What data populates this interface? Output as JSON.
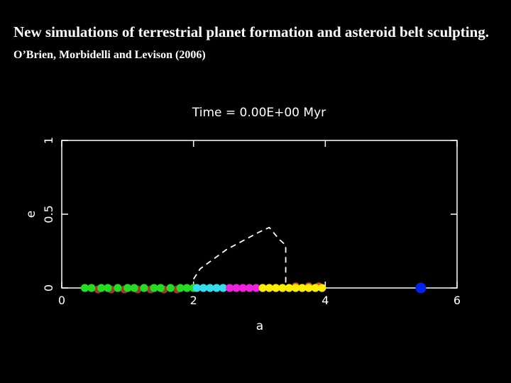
{
  "slide": {
    "title": "New simulations of terrestrial planet formation and asteroid belt sculpting.",
    "credit": "O’Brien, Morbidelli and Levison (2006)"
  },
  "chart_data": {
    "type": "scatter",
    "title": "Time = 0.00E+00 Myr",
    "xlabel": "a",
    "ylabel": "e",
    "xlim": [
      0,
      6
    ],
    "ylim": [
      0,
      1
    ],
    "x_ticks": [
      0,
      2,
      4,
      6
    ],
    "x_tick_labels": [
      "0",
      "2",
      "4",
      "6"
    ],
    "y_ticks": [
      0,
      0.5,
      1
    ],
    "y_tick_labels": [
      "0",
      "0.5",
      "1"
    ],
    "grid": false,
    "legend": "none",
    "boundary_curve": {
      "style": "dashed",
      "color": "#ffffff",
      "x": [
        2.0,
        2.1,
        2.5,
        3.0,
        3.15,
        3.3,
        3.4,
        3.4
      ],
      "y": [
        0.06,
        0.13,
        0.26,
        0.38,
        0.41,
        0.33,
        0.29,
        0.0
      ]
    },
    "series": [
      {
        "color": "#9a3a2a",
        "x": [
          0.55,
          0.75,
          0.95,
          1.15,
          1.35,
          1.55,
          1.75
        ],
        "y": [
          -0.01,
          -0.01,
          -0.01,
          -0.01,
          -0.01,
          -0.01,
          -0.01
        ]
      },
      {
        "color": "#22dd22",
        "x": [
          0.35,
          0.45,
          0.6,
          0.7,
          0.85,
          1.0,
          1.1,
          1.25,
          1.4,
          1.5,
          1.65,
          1.8,
          1.9,
          2.0
        ],
        "y": [
          0.0,
          0.0,
          0.0,
          0.0,
          0.0,
          0.0,
          0.0,
          0.0,
          0.0,
          0.0,
          0.0,
          0.0,
          0.0,
          0.0
        ]
      },
      {
        "color": "#33ddee",
        "x": [
          2.05,
          2.15,
          2.25,
          2.35,
          2.45
        ],
        "y": [
          0.0,
          0.0,
          0.0,
          0.0,
          0.0
        ]
      },
      {
        "color": "#ee22dd",
        "x": [
          2.55,
          2.65,
          2.75,
          2.85,
          2.95
        ],
        "y": [
          0.0,
          0.0,
          0.0,
          0.0,
          0.0
        ]
      },
      {
        "color": "#cc5522",
        "x": [
          3.55,
          3.75,
          3.9
        ],
        "y": [
          0.01,
          0.01,
          0.01
        ]
      },
      {
        "color": "#ffee00",
        "x": [
          3.05,
          3.15,
          3.25,
          3.35,
          3.45,
          3.55,
          3.65,
          3.75,
          3.85,
          3.95
        ],
        "y": [
          0.0,
          0.0,
          0.0,
          0.0,
          0.0,
          0.0,
          0.0,
          0.0,
          0.0,
          0.0
        ]
      },
      {
        "color": "#0022ee",
        "x": [
          5.45
        ],
        "y": [
          0.0
        ],
        "size": "large"
      }
    ]
  }
}
